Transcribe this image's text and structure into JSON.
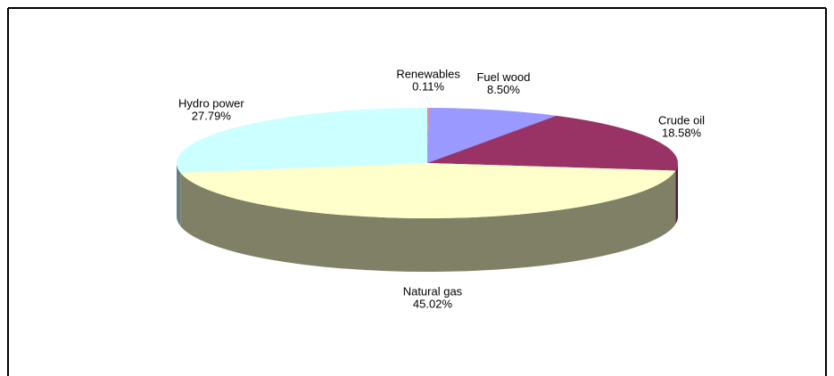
{
  "chart_data": {
    "type": "pie",
    "categories": [
      "Renewables",
      "Fuel wood",
      "Crude oil",
      "Natural gas",
      "Hydro power"
    ],
    "values": [
      0.11,
      8.5,
      18.58,
      45.02,
      27.79
    ],
    "value_labels": [
      "0.11%",
      "8.50%",
      "18.58%",
      "45.02%",
      "27.79%"
    ],
    "colors": [
      "#ff8080",
      "#9999ff",
      "#993366",
      "#ffffcc",
      "#ccffff"
    ]
  }
}
